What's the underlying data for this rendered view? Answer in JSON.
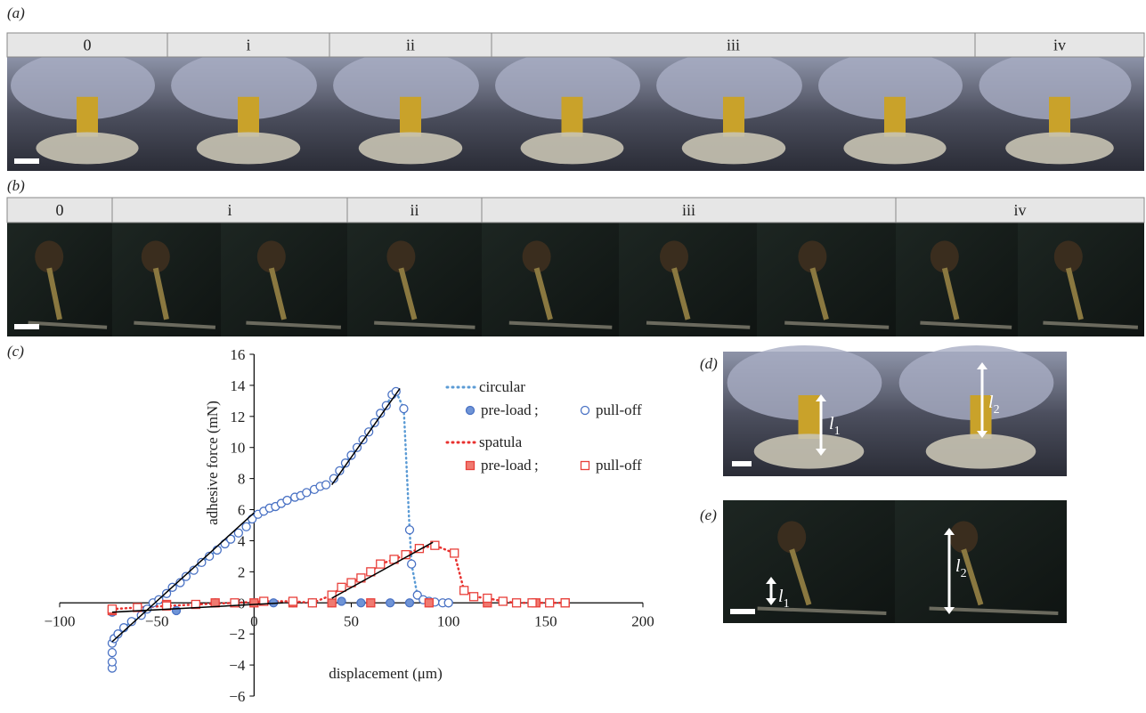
{
  "panels": {
    "a": {
      "label": "(a)",
      "headers": [
        "0",
        "i",
        "ii",
        "iii",
        "iv"
      ]
    },
    "b": {
      "label": "(b)",
      "headers": [
        "0",
        "i",
        "ii",
        "iii",
        "iv"
      ]
    },
    "c": {
      "label": "(c)"
    },
    "d": {
      "label": "(d)",
      "annotations": [
        {
          "symbol": "l",
          "subscript": "1"
        },
        {
          "symbol": "l",
          "subscript": "2"
        }
      ]
    },
    "e": {
      "label": "(e)",
      "annotations": [
        {
          "symbol": "l",
          "subscript": "1"
        },
        {
          "symbol": "l",
          "subscript": "2"
        }
      ]
    }
  },
  "chart_data": {
    "type": "scatter",
    "x_label": "displacement (μm)",
    "y_label": "adhesive force (mN)",
    "xlim": [
      -100,
      200
    ],
    "xticks": [
      {
        "value": -100,
        "label": "−100"
      },
      {
        "value": -50,
        "label": "−50"
      },
      0,
      50,
      100,
      150,
      200
    ],
    "ylim": [
      -6,
      16
    ],
    "yticks": [
      {
        "value": -6,
        "label": "−6"
      },
      {
        "value": -4,
        "label": "−4"
      },
      {
        "value": -2,
        "label": "−2"
      },
      0,
      2,
      4,
      6,
      8,
      10,
      12,
      14,
      16
    ],
    "legend_separator": ";",
    "groups": [
      {
        "name": "circular",
        "color": "#5b9bd5"
      },
      {
        "name": "spatula",
        "color": "#e8312f"
      }
    ],
    "series": [
      {
        "name": "pre-load",
        "group": 0,
        "color": "#4a72c4",
        "marker": "circle",
        "filled": true,
        "x": [
          -73,
          -40,
          -20,
          0,
          10,
          20,
          30,
          40,
          45,
          55,
          70,
          80,
          90,
          100
        ],
        "values": [
          -0.6,
          -0.5,
          0,
          0,
          0,
          0,
          0,
          0,
          0.1,
          0,
          0,
          0,
          0,
          0
        ]
      },
      {
        "name": "pull-off",
        "group": 0,
        "color": "#4a72c4",
        "marker": "circle",
        "filled": false,
        "x": [
          -73,
          -73,
          -73,
          -73,
          -72,
          -70,
          -67,
          -63,
          -58,
          -55,
          -52,
          -49,
          -45,
          -42,
          -38,
          -35,
          -31,
          -27,
          -23,
          -19,
          -15,
          -12,
          -8,
          -4,
          -1,
          2,
          5,
          8,
          11,
          14,
          17,
          21,
          24,
          27,
          31,
          34,
          37,
          41,
          44,
          47,
          50,
          53,
          56,
          59,
          62,
          65,
          68,
          71,
          73,
          77,
          80,
          81,
          84,
          87,
          90,
          93,
          97,
          100
        ],
        "values": [
          -4.2,
          -3.8,
          -3.2,
          -2.6,
          -2.3,
          -2,
          -1.6,
          -1.2,
          -0.8,
          -0.4,
          0,
          0.2,
          0.6,
          1,
          1.3,
          1.7,
          2.1,
          2.6,
          3,
          3.4,
          3.8,
          4.1,
          4.5,
          4.9,
          5.4,
          5.7,
          5.9,
          6.1,
          6.2,
          6.4,
          6.6,
          6.8,
          6.9,
          7.1,
          7.3,
          7.5,
          7.6,
          8,
          8.5,
          9,
          9.5,
          10,
          10.5,
          11,
          11.6,
          12.2,
          12.7,
          13.4,
          13.6,
          12.5,
          4.7,
          2.5,
          0.5,
          0.2,
          0.1,
          0.05,
          0,
          0
        ]
      },
      {
        "name": "pre-load",
        "group": 1,
        "color": "#e8403a",
        "marker": "square",
        "filled": true,
        "x": [
          -73,
          -45,
          -20,
          0,
          20,
          40,
          60,
          90,
          120,
          145,
          160
        ],
        "values": [
          -0.5,
          -0.1,
          0,
          0,
          0,
          0,
          0,
          0,
          0,
          0,
          0
        ]
      },
      {
        "name": "pull-off",
        "group": 1,
        "color": "#e8403a",
        "marker": "square",
        "filled": false,
        "x": [
          -73,
          -60,
          -45,
          -30,
          -10,
          5,
          20,
          30,
          40,
          45,
          50,
          55,
          60,
          65,
          72,
          78,
          85,
          93,
          103,
          108,
          113,
          120,
          128,
          135,
          143,
          152,
          160
        ],
        "values": [
          -0.4,
          -0.3,
          -0.2,
          -0.1,
          0,
          0.1,
          0.1,
          0,
          0.5,
          1,
          1.3,
          1.6,
          2,
          2.5,
          2.8,
          3.1,
          3.5,
          3.7,
          3.2,
          0.8,
          0.4,
          0.3,
          0.1,
          0,
          0,
          0,
          0
        ]
      }
    ],
    "fits": [
      {
        "x": [
          -73,
          0
        ],
        "values": [
          -2.5,
          5.8
        ]
      },
      {
        "x": [
          40,
          75
        ],
        "values": [
          7.6,
          13.8
        ]
      },
      {
        "x": [
          40,
          92
        ],
        "values": [
          0.3,
          3.9
        ]
      },
      {
        "x": [
          -73,
          15
        ],
        "values": [
          -0.6,
          0
        ]
      }
    ],
    "fit_color": "#000000"
  }
}
